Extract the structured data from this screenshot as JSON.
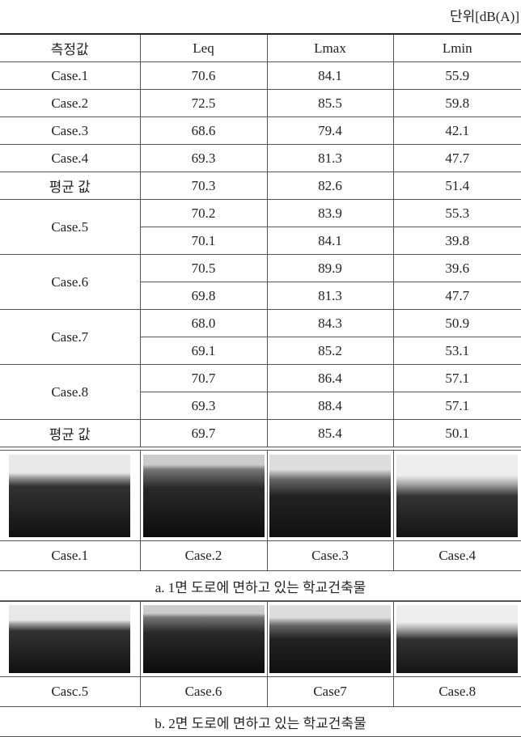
{
  "unit": "단위[dB(A)]",
  "table": {
    "header": [
      "측정값",
      "Leq",
      "Lmax",
      "Lmin"
    ],
    "groups": [
      {
        "label": "Case.1",
        "rows": [
          [
            "70.6",
            "84.1",
            "55.9"
          ]
        ]
      },
      {
        "label": "Case.2",
        "rows": [
          [
            "72.5",
            "85.5",
            "59.8"
          ]
        ]
      },
      {
        "label": "Case.3",
        "rows": [
          [
            "68.6",
            "79.4",
            "42.1"
          ]
        ]
      },
      {
        "label": "Case.4",
        "rows": [
          [
            "69.3",
            "81.3",
            "47.7"
          ]
        ]
      },
      {
        "label": "평균 값",
        "rows": [
          [
            "70.3",
            "82.6",
            "51.4"
          ]
        ]
      },
      {
        "label": "Case.5",
        "rows": [
          [
            "70.2",
            "83.9",
            "55.3"
          ],
          [
            "70.1",
            "84.1",
            "39.8"
          ]
        ]
      },
      {
        "label": "Case.6",
        "rows": [
          [
            "70.5",
            "89.9",
            "39.6"
          ],
          [
            "69.8",
            "81.3",
            "47.7"
          ]
        ]
      },
      {
        "label": "Case.7",
        "rows": [
          [
            "68.0",
            "84.3",
            "50.9"
          ],
          [
            "69.1",
            "85.2",
            "53.1"
          ]
        ]
      },
      {
        "label": "Case.8",
        "rows": [
          [
            "70.7",
            "86.4",
            "57.1"
          ],
          [
            "69.3",
            "88.4",
            "57.1"
          ]
        ]
      },
      {
        "label": "평균 값",
        "rows": [
          [
            "69.7",
            "85.4",
            "50.1"
          ]
        ]
      }
    ]
  },
  "photo_panels": [
    {
      "labels": [
        "Case.1",
        "Case.2",
        "Case.3",
        "Case.4"
      ],
      "caption": "a. 1면 도로에 면하고 있는 학교건축물"
    },
    {
      "labels": [
        "Casc.5",
        "Case.6",
        "Case7",
        "Case.8"
      ],
      "caption": "b. 2면 도로에 면하고 있는 학교건축물"
    }
  ]
}
